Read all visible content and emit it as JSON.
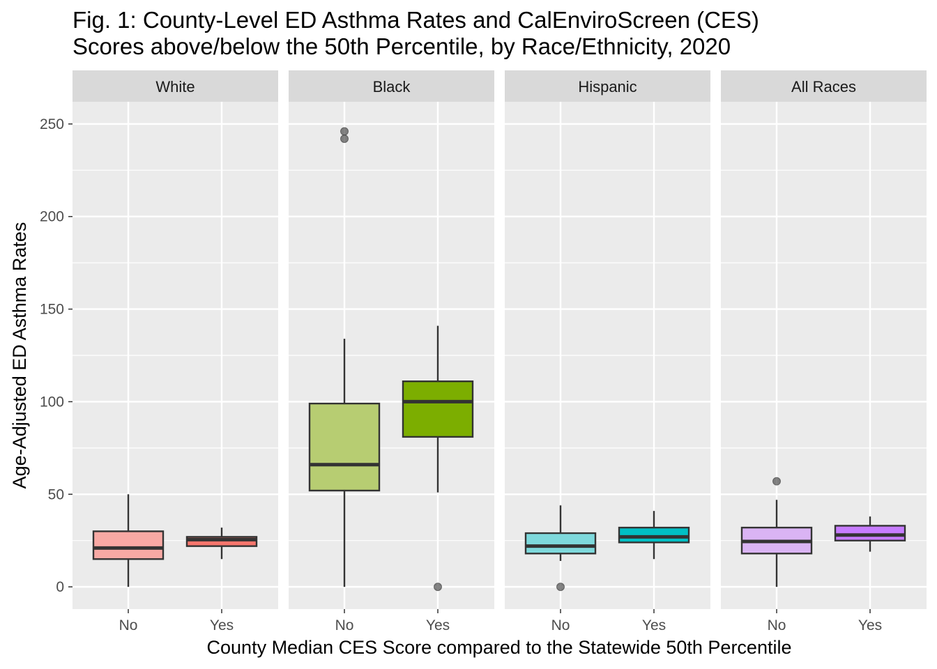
{
  "chart_data": {
    "type": "boxplot",
    "title_lines": [
      "Fig. 1: County-Level ED Asthma Rates and CalEnviroScreen (CES)",
      "Scores above/below the 50th Percentile, by Race/Ethnicity, 2020"
    ],
    "xlabel": "County Median CES Score compared to the Statewide 50th Percentile",
    "ylabel": "Age-Adjusted ED Asthma Rates",
    "ylim": [
      -12,
      262
    ],
    "yticks": [
      0,
      50,
      100,
      150,
      200,
      250
    ],
    "ytick_labels": [
      "0",
      "50",
      "100",
      "150",
      "200",
      "250"
    ],
    "categories": [
      "No",
      "Yes"
    ],
    "grid": true,
    "legend": "none",
    "facets": [
      {
        "label": "White",
        "boxes": [
          {
            "category": "No",
            "whisker_low": 0,
            "q1": 15,
            "median": 21,
            "q3": 30,
            "whisker_high": 50,
            "outliers": [],
            "color": "#F8A9A4"
          },
          {
            "category": "Yes",
            "whisker_low": 15,
            "q1": 22,
            "median": 25.5,
            "q3": 27,
            "whisker_high": 32,
            "outliers": [],
            "color": "#F8766D"
          }
        ]
      },
      {
        "label": "Black",
        "boxes": [
          {
            "category": "No",
            "whisker_low": 0,
            "q1": 52,
            "median": 66,
            "q3": 99,
            "whisker_high": 134,
            "outliers": [
              242,
              246
            ],
            "color": "#B7CD72"
          },
          {
            "category": "Yes",
            "whisker_low": 51,
            "q1": 81,
            "median": 100,
            "q3": 111,
            "whisker_high": 141,
            "outliers": [
              0
            ],
            "color": "#7CAE00"
          }
        ]
      },
      {
        "label": "Hispanic",
        "boxes": [
          {
            "category": "No",
            "whisker_low": 14,
            "q1": 18,
            "median": 22,
            "q3": 29,
            "whisker_high": 44,
            "outliers": [
              0
            ],
            "color": "#7ED9DC"
          },
          {
            "category": "Yes",
            "whisker_low": 15,
            "q1": 24,
            "median": 27,
            "q3": 32,
            "whisker_high": 41,
            "outliers": [],
            "color": "#00BFC4"
          }
        ]
      },
      {
        "label": "All Races",
        "boxes": [
          {
            "category": "No",
            "whisker_low": 0,
            "q1": 18,
            "median": 24.5,
            "q3": 32,
            "whisker_high": 47,
            "outliers": [
              57
            ],
            "color": "#DAB4F4"
          },
          {
            "category": "Yes",
            "whisker_low": 19,
            "q1": 25,
            "median": 28,
            "q3": 33,
            "whisker_high": 38,
            "outliers": [],
            "color": "#C77CFF"
          }
        ]
      }
    ]
  }
}
